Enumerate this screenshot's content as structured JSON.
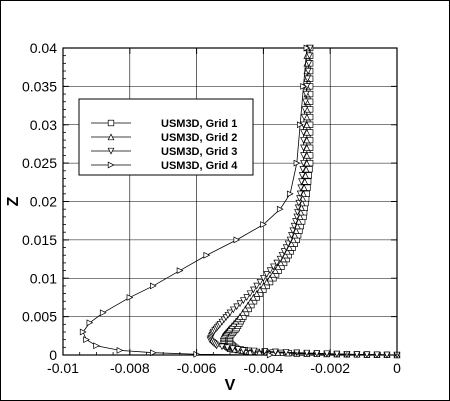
{
  "chart_data": {
    "type": "line",
    "title": "",
    "xlabel": "V",
    "ylabel": "Z",
    "xlim": [
      -0.01,
      0
    ],
    "ylim": [
      0,
      0.04
    ],
    "x_ticks": [
      -0.01,
      -0.008,
      -0.006,
      -0.004,
      -0.002,
      0
    ],
    "x_tick_labels": [
      "-0.01",
      "-0.008",
      "-0.006",
      "-0.004",
      "-0.002",
      "0"
    ],
    "y_ticks": [
      0,
      0.005,
      0.01,
      0.015,
      0.02,
      0.025,
      0.03,
      0.035,
      0.04
    ],
    "y_tick_labels": [
      "0",
      "0.005",
      "0.01",
      "0.015",
      "0.02",
      "0.025",
      "0.03",
      "0.035",
      "0.04"
    ],
    "grid": true,
    "legend_placement": "top-left",
    "series": [
      {
        "name": "USM3D, Grid 1",
        "marker": "square",
        "points": [
          [
            0,
            0
          ],
          [
            -0.0015,
            0.0001
          ],
          [
            -0.003,
            0.0002
          ],
          [
            -0.0042,
            0.0004
          ],
          [
            -0.0048,
            0.0008
          ],
          [
            -0.005,
            0.0015
          ],
          [
            -0.005,
            0.0025
          ],
          [
            -0.0048,
            0.0035
          ],
          [
            -0.0046,
            0.005
          ],
          [
            -0.0042,
            0.0075
          ],
          [
            -0.0037,
            0.01
          ],
          [
            -0.0033,
            0.0125
          ],
          [
            -0.003,
            0.015
          ],
          [
            -0.0028,
            0.018
          ],
          [
            -0.0027,
            0.021
          ],
          [
            -0.0026,
            0.025
          ],
          [
            -0.0026,
            0.03
          ],
          [
            -0.0026,
            0.035
          ],
          [
            -0.0026,
            0.04
          ]
        ]
      },
      {
        "name": "USM3D, Grid 2",
        "marker": "triangle-up",
        "points": [
          [
            0,
            0
          ],
          [
            -0.0015,
            0.0001
          ],
          [
            -0.003,
            0.0002
          ],
          [
            -0.0044,
            0.0004
          ],
          [
            -0.005,
            0.0008
          ],
          [
            -0.0052,
            0.0015
          ],
          [
            -0.0052,
            0.0025
          ],
          [
            -0.005,
            0.0035
          ],
          [
            -0.0047,
            0.005
          ],
          [
            -0.0043,
            0.0075
          ],
          [
            -0.0038,
            0.01
          ],
          [
            -0.0034,
            0.0125
          ],
          [
            -0.0031,
            0.015
          ],
          [
            -0.0029,
            0.018
          ],
          [
            -0.0028,
            0.021
          ],
          [
            -0.0027,
            0.025
          ],
          [
            -0.0027,
            0.03
          ],
          [
            -0.0027,
            0.035
          ],
          [
            -0.0027,
            0.04
          ]
        ]
      },
      {
        "name": "USM3D, Grid 3",
        "marker": "triangle-down",
        "points": [
          [
            0,
            0
          ],
          [
            -0.0015,
            0.0001
          ],
          [
            -0.003,
            0.0003
          ],
          [
            -0.0046,
            0.0006
          ],
          [
            -0.0054,
            0.0012
          ],
          [
            -0.0056,
            0.002
          ],
          [
            -0.0055,
            0.003
          ],
          [
            -0.0053,
            0.004
          ],
          [
            -0.005,
            0.0055
          ],
          [
            -0.0045,
            0.0075
          ],
          [
            -0.004,
            0.01
          ],
          [
            -0.0035,
            0.0125
          ],
          [
            -0.0032,
            0.015
          ],
          [
            -0.003,
            0.018
          ],
          [
            -0.0029,
            0.021
          ],
          [
            -0.0028,
            0.025
          ],
          [
            -0.0028,
            0.03
          ],
          [
            -0.0027,
            0.035
          ],
          [
            -0.0026,
            0.04
          ]
        ]
      },
      {
        "name": "USM3D, Grid 4",
        "marker": "triangle-right",
        "points": [
          [
            -0.0038,
            0
          ],
          [
            -0.006,
            0.0001
          ],
          [
            -0.0073,
            0.0003
          ],
          [
            -0.0083,
            0.0006
          ],
          [
            -0.009,
            0.0012
          ],
          [
            -0.0093,
            0.002
          ],
          [
            -0.0094,
            0.003
          ],
          [
            -0.0092,
            0.0042
          ],
          [
            -0.0088,
            0.0055
          ],
          [
            -0.008,
            0.0075
          ],
          [
            -0.0073,
            0.009
          ],
          [
            -0.0065,
            0.011
          ],
          [
            -0.0057,
            0.013
          ],
          [
            -0.0048,
            0.015
          ],
          [
            -0.004,
            0.017
          ],
          [
            -0.0035,
            0.019
          ],
          [
            -0.0032,
            0.021
          ],
          [
            -0.003,
            0.025
          ],
          [
            -0.0029,
            0.03
          ],
          [
            -0.0028,
            0.035
          ],
          [
            -0.0027,
            0.04
          ]
        ]
      }
    ]
  }
}
